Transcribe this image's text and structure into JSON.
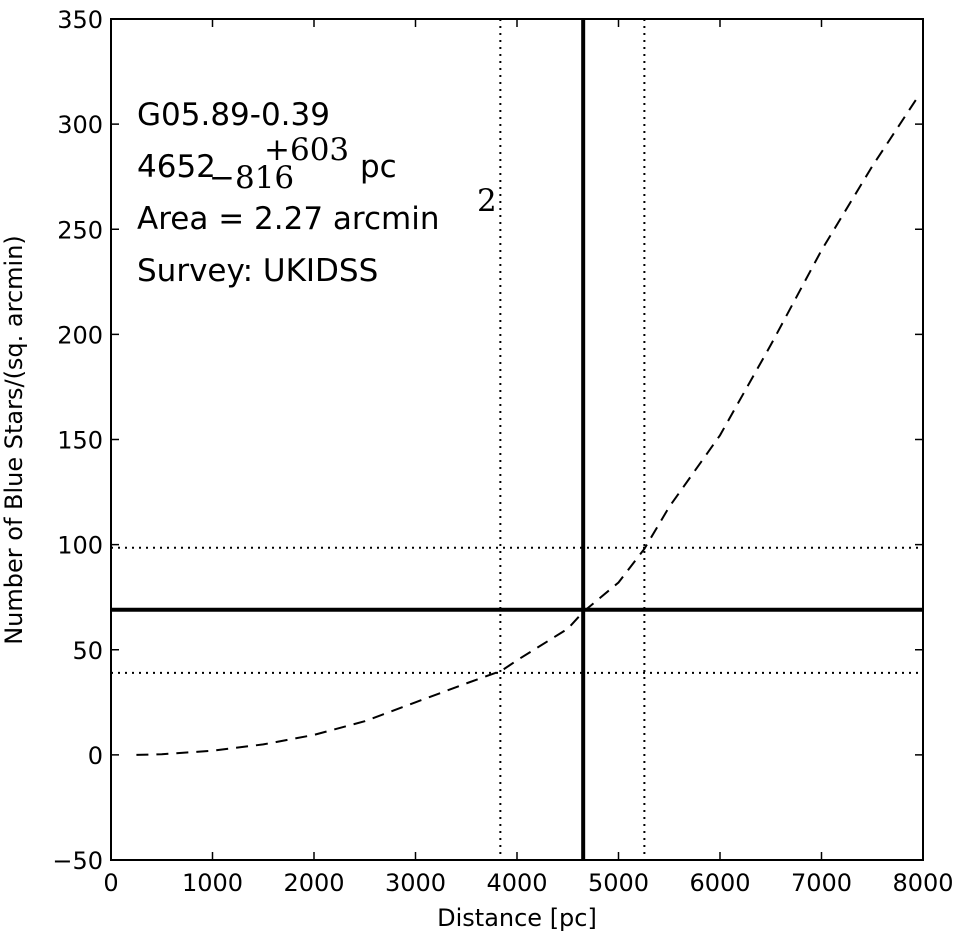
{
  "chart_data": {
    "type": "line",
    "xlabel": "Distance [pc]",
    "ylabel": "Number of Blue Stars/(sq. arcmin)",
    "xlim": [
      0,
      8000
    ],
    "ylim": [
      -50,
      350
    ],
    "xticks": [
      0,
      1000,
      2000,
      3000,
      4000,
      5000,
      6000,
      7000,
      8000
    ],
    "xtick_labels": [
      "0",
      "1000",
      "2000",
      "3000",
      "4000",
      "5000",
      "6000",
      "7000",
      "8000"
    ],
    "yticks": [
      -50,
      0,
      50,
      100,
      150,
      200,
      250,
      300,
      350
    ],
    "ytick_labels": [
      "−50",
      "0",
      "50",
      "100",
      "150",
      "200",
      "250",
      "300",
      "350"
    ],
    "grid": false,
    "series": [
      {
        "style": "dashed",
        "x": [
          250,
          500,
          1000,
          1500,
          2000,
          2500,
          3000,
          3500,
          3846,
          4000,
          4500,
          4652,
          5000,
          5255,
          5500,
          6000,
          6500,
          7000,
          7500,
          7950
        ],
        "y": [
          0,
          0.3,
          2,
          5,
          9.5,
          16,
          25,
          34,
          40,
          45,
          60,
          68,
          82,
          98,
          118,
          152,
          195,
          240,
          280,
          313
        ]
      }
    ],
    "reference_lines": [
      {
        "orientation": "vertical",
        "value": 4652,
        "style": "solid"
      },
      {
        "orientation": "vertical",
        "value": 3836,
        "style": "dotted"
      },
      {
        "orientation": "vertical",
        "value": 5255,
        "style": "dotted"
      },
      {
        "orientation": "horizontal",
        "value": 69,
        "style": "solid"
      },
      {
        "orientation": "horizontal",
        "value": 98.5,
        "style": "dotted"
      },
      {
        "orientation": "horizontal",
        "value": 39,
        "style": "dotted"
      }
    ],
    "annotations": {
      "source_name": "G05.89-0.39",
      "distance_value": "4652",
      "distance_minus": "−816",
      "distance_plus": "+603",
      "distance_unit": "pc",
      "area_text": "Area = 2.27 arcmin",
      "area_exponent": "2",
      "survey_text": "Survey: UKIDSS"
    },
    "colors": {
      "line": "#000000",
      "background": "#ffffff"
    }
  }
}
